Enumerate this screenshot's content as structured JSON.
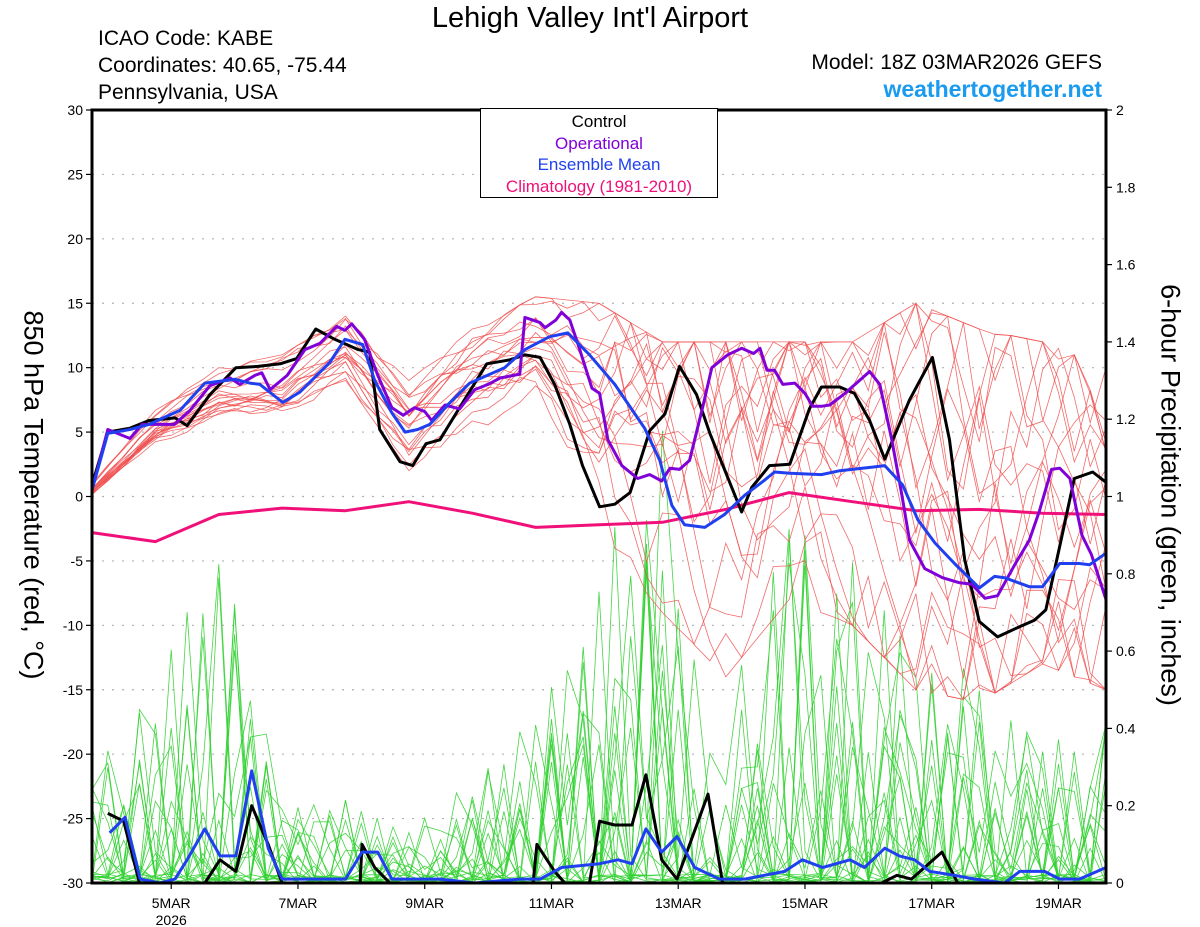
{
  "header": {
    "title": "Lehigh Valley Int'l Airport",
    "icao": "ICAO Code: KABE",
    "coordinates": "Coordinates: 40.65, -75.44",
    "region": "Pennsylvania, USA",
    "model": "Model: 18Z 03MAR2026 GEFS",
    "site": "weathertogether.net"
  },
  "legend": {
    "items": [
      {
        "label": "Control",
        "color": "#000000"
      },
      {
        "label": "Operational",
        "color": "#8000d8"
      },
      {
        "label": "Ensemble Mean",
        "color": "#2040f0"
      },
      {
        "label": "Climatology (1981-2010)",
        "color": "#f0107a"
      }
    ]
  },
  "chart_data": {
    "type": "line",
    "title": "Lehigh Valley Int'l Airport",
    "x_unit": "days since 18Z 03MAR2026",
    "xlim": [
      0,
      16
    ],
    "xticks": [
      {
        "day": 1.25,
        "label": "5MAR",
        "sublabel": "2026"
      },
      {
        "day": 3.25,
        "label": "7MAR",
        "sublabel": ""
      },
      {
        "day": 5.25,
        "label": "9MAR",
        "sublabel": ""
      },
      {
        "day": 7.25,
        "label": "11MAR",
        "sublabel": ""
      },
      {
        "day": 9.25,
        "label": "13MAR",
        "sublabel": ""
      },
      {
        "day": 11.25,
        "label": "15MAR",
        "sublabel": ""
      },
      {
        "day": 13.25,
        "label": "17MAR",
        "sublabel": ""
      },
      {
        "day": 15.25,
        "label": "19MAR",
        "sublabel": ""
      }
    ],
    "ylabel_left": "850 hPa Temperature (red, °C)",
    "ylabel_right": "6-hour Precipitation (green, inches)",
    "ylim_left": [
      -30,
      30
    ],
    "yticks_left": [
      30,
      25,
      20,
      15,
      10,
      5,
      0,
      -5,
      -10,
      -15,
      -20,
      -25,
      -30
    ],
    "ylim_right": [
      0,
      2
    ],
    "yticks_right": [
      "2",
      "1.8",
      "1.6",
      "1.4",
      "1.2",
      "1",
      "0.8",
      "0.6",
      "0.4",
      "0.2",
      "0"
    ],
    "grid": "dotted horizontal",
    "legend_position": "top-center",
    "colors": {
      "members_temp": "#f05050",
      "members_precip": "#30d030",
      "control": "#000000",
      "operational": "#8000d8",
      "mean": "#2040f0",
      "climatology": "#f0107a"
    },
    "temperature": {
      "control": [
        [
          0,
          0.9
        ],
        [
          0.25,
          5.0
        ],
        [
          0.6,
          5.3
        ],
        [
          0.9,
          5.9
        ],
        [
          1.31,
          6.1
        ],
        [
          1.5,
          5.5
        ],
        [
          1.86,
          7.9
        ],
        [
          2.27,
          10.0
        ],
        [
          2.62,
          10.1
        ],
        [
          2.97,
          10.3
        ],
        [
          3.23,
          10.7
        ],
        [
          3.53,
          13.0
        ],
        [
          3.83,
          12.2
        ],
        [
          4.2,
          11.4
        ],
        [
          4.38,
          11.2
        ],
        [
          4.54,
          5.2
        ],
        [
          4.86,
          2.7
        ],
        [
          5.06,
          2.4
        ],
        [
          5.27,
          4.1
        ],
        [
          5.49,
          4.4
        ],
        [
          5.8,
          6.9
        ],
        [
          6.23,
          10.3
        ],
        [
          6.59,
          10.6
        ],
        [
          6.83,
          11.0
        ],
        [
          7.07,
          10.8
        ],
        [
          7.3,
          8.7
        ],
        [
          7.54,
          5.6
        ],
        [
          7.74,
          2.4
        ],
        [
          8.01,
          -0.8
        ],
        [
          8.25,
          -0.6
        ],
        [
          8.49,
          0.3
        ],
        [
          8.8,
          5.1
        ],
        [
          9.04,
          6.4
        ],
        [
          9.27,
          10.1
        ],
        [
          9.54,
          7.9
        ],
        [
          9.75,
          4.9
        ],
        [
          9.98,
          2.1
        ],
        [
          10.25,
          -1.2
        ],
        [
          10.41,
          0.7
        ],
        [
          10.69,
          2.4
        ],
        [
          11.01,
          2.5
        ],
        [
          11.32,
          6.8
        ],
        [
          11.51,
          8.5
        ],
        [
          11.8,
          8.5
        ],
        [
          12.03,
          8.0
        ],
        [
          12.27,
          5.9
        ],
        [
          12.51,
          2.9
        ],
        [
          12.9,
          7.5
        ],
        [
          13.26,
          10.8
        ],
        [
          13.53,
          4.4
        ],
        [
          13.77,
          -4.9
        ],
        [
          14.0,
          -9.7
        ],
        [
          14.29,
          -10.9
        ],
        [
          14.64,
          -10.1
        ],
        [
          14.87,
          -9.6
        ],
        [
          15.05,
          -8.8
        ],
        [
          15.3,
          -3.2
        ],
        [
          15.5,
          1.4
        ],
        [
          15.79,
          1.9
        ],
        [
          16.0,
          1.1
        ]
      ],
      "operational": [
        [
          0,
          0.5
        ],
        [
          0.25,
          5.2
        ],
        [
          0.6,
          4.5
        ],
        [
          0.79,
          5.6
        ],
        [
          1.0,
          5.6
        ],
        [
          1.3,
          5.6
        ],
        [
          1.55,
          6.7
        ],
        [
          1.86,
          8.6
        ],
        [
          2.18,
          9.2
        ],
        [
          2.33,
          8.7
        ],
        [
          2.57,
          9.4
        ],
        [
          2.68,
          9.6
        ],
        [
          2.81,
          8.3
        ],
        [
          3.08,
          9.4
        ],
        [
          3.36,
          11.4
        ],
        [
          3.6,
          11.9
        ],
        [
          3.86,
          13.2
        ],
        [
          3.99,
          12.9
        ],
        [
          4.1,
          13.4
        ],
        [
          4.3,
          12.2
        ],
        [
          4.51,
          9.4
        ],
        [
          4.73,
          6.9
        ],
        [
          4.91,
          6.3
        ],
        [
          5.09,
          6.9
        ],
        [
          5.25,
          6.6
        ],
        [
          5.36,
          5.9
        ],
        [
          5.57,
          7.1
        ],
        [
          5.8,
          6.8
        ],
        [
          6.04,
          8.3
        ],
        [
          6.25,
          8.7
        ],
        [
          6.44,
          9.2
        ],
        [
          6.75,
          9.5
        ],
        [
          6.83,
          13.9
        ],
        [
          7.07,
          13.5
        ],
        [
          7.15,
          13.1
        ],
        [
          7.32,
          13.7
        ],
        [
          7.41,
          14.3
        ],
        [
          7.54,
          13.7
        ],
        [
          7.67,
          11.8
        ],
        [
          7.89,
          8.4
        ],
        [
          8.01,
          8.0
        ],
        [
          8.14,
          4.4
        ],
        [
          8.36,
          2.4
        ],
        [
          8.61,
          1.4
        ],
        [
          8.8,
          1.7
        ],
        [
          8.99,
          1.2
        ],
        [
          9.12,
          2.2
        ],
        [
          9.27,
          2.1
        ],
        [
          9.43,
          2.8
        ],
        [
          9.64,
          7.0
        ],
        [
          9.78,
          10.0
        ],
        [
          10.03,
          11.0
        ],
        [
          10.25,
          11.5
        ],
        [
          10.44,
          11.1
        ],
        [
          10.54,
          11.5
        ],
        [
          10.65,
          9.8
        ],
        [
          10.77,
          9.8
        ],
        [
          10.9,
          8.7
        ],
        [
          11.09,
          8.8
        ],
        [
          11.25,
          8.0
        ],
        [
          11.37,
          7.0
        ],
        [
          11.51,
          7.0
        ],
        [
          11.64,
          7.1
        ],
        [
          11.88,
          8.0
        ],
        [
          12.27,
          9.7
        ],
        [
          12.43,
          8.7
        ],
        [
          12.62,
          4.4
        ],
        [
          12.78,
          0.1
        ],
        [
          12.9,
          -3.4
        ],
        [
          13.14,
          -5.6
        ],
        [
          13.42,
          -6.3
        ],
        [
          13.69,
          -6.7
        ],
        [
          13.88,
          -6.8
        ],
        [
          14.09,
          -7.9
        ],
        [
          14.29,
          -7.7
        ],
        [
          14.56,
          -5.3
        ],
        [
          14.79,
          -3.4
        ],
        [
          14.95,
          -1.1
        ],
        [
          15.14,
          2.1
        ],
        [
          15.27,
          2.2
        ],
        [
          15.43,
          1.4
        ],
        [
          15.62,
          -3.0
        ],
        [
          15.77,
          -4.5
        ],
        [
          16.0,
          -8.0
        ]
      ],
      "mean": [
        [
          0,
          0.5
        ],
        [
          0.25,
          4.9
        ],
        [
          0.6,
          5.2
        ],
        [
          0.9,
          5.6
        ],
        [
          1.39,
          6.7
        ],
        [
          1.78,
          8.8
        ],
        [
          2.26,
          9.1
        ],
        [
          2.49,
          8.8
        ],
        [
          2.65,
          8.7
        ],
        [
          3.01,
          7.3
        ],
        [
          3.28,
          8.1
        ],
        [
          3.75,
          10.4
        ],
        [
          3.99,
          12.2
        ],
        [
          4.27,
          11.8
        ],
        [
          4.46,
          9.0
        ],
        [
          4.73,
          6.5
        ],
        [
          4.94,
          5.0
        ],
        [
          5.14,
          5.2
        ],
        [
          5.33,
          5.6
        ],
        [
          5.65,
          7.3
        ],
        [
          5.96,
          8.8
        ],
        [
          6.51,
          10.0
        ],
        [
          6.83,
          11.4
        ],
        [
          7.22,
          12.4
        ],
        [
          7.51,
          12.7
        ],
        [
          7.85,
          11.0
        ],
        [
          8.25,
          8.7
        ],
        [
          8.72,
          5.3
        ],
        [
          8.96,
          2.8
        ],
        [
          9.15,
          -0.7
        ],
        [
          9.35,
          -2.2
        ],
        [
          9.67,
          -2.4
        ],
        [
          9.98,
          -1.4
        ],
        [
          10.3,
          0.1
        ],
        [
          10.62,
          1.3
        ],
        [
          10.77,
          1.9
        ],
        [
          11.01,
          1.8
        ],
        [
          11.51,
          1.7
        ],
        [
          11.8,
          2.0
        ],
        [
          12.35,
          2.3
        ],
        [
          12.51,
          2.4
        ],
        [
          12.79,
          0.9
        ],
        [
          13.03,
          -1.8
        ],
        [
          13.3,
          -3.6
        ],
        [
          13.61,
          -5.2
        ],
        [
          14.0,
          -7.1
        ],
        [
          14.24,
          -6.2
        ],
        [
          14.4,
          -6.3
        ],
        [
          14.79,
          -7.0
        ],
        [
          15.0,
          -7.0
        ],
        [
          15.27,
          -5.2
        ],
        [
          15.58,
          -5.2
        ],
        [
          15.74,
          -5.3
        ],
        [
          16.0,
          -4.4
        ]
      ],
      "climatology": [
        [
          0,
          -2.8
        ],
        [
          1.0,
          -3.5
        ],
        [
          2.0,
          -1.4
        ],
        [
          3.0,
          -0.9
        ],
        [
          4.0,
          -1.1
        ],
        [
          5.0,
          -0.4
        ],
        [
          6.0,
          -1.3
        ],
        [
          7.0,
          -2.4
        ],
        [
          8.0,
          -2.2
        ],
        [
          9.0,
          -2.0
        ],
        [
          10.0,
          -1.0
        ],
        [
          11.0,
          0.3
        ],
        [
          12.0,
          -0.4
        ],
        [
          13.0,
          -1.1
        ],
        [
          14.0,
          -1.0
        ],
        [
          15.0,
          -1.3
        ],
        [
          16.0,
          -1.4
        ]
      ],
      "members": {
        "count": 20,
        "envelope_by_day": [
          [
            0,
            1
          ],
          [
            4,
            7
          ],
          [
            6,
            10
          ],
          [
            6,
            11
          ],
          [
            9,
            14
          ],
          [
            2,
            9
          ],
          [
            5,
            13
          ],
          [
            7,
            15.5
          ],
          [
            -3,
            15
          ],
          [
            -9,
            12
          ],
          [
            -14,
            12
          ],
          [
            -8,
            12
          ],
          [
            -10,
            12
          ],
          [
            -15,
            15
          ],
          [
            -16,
            13
          ],
          [
            -13,
            12
          ],
          [
            -15,
            10
          ]
        ]
      }
    },
    "precipitation": {
      "control": [
        [
          0.25,
          0.18
        ],
        [
          0.5,
          0.16
        ],
        [
          0.75,
          0
        ],
        [
          1.78,
          0
        ],
        [
          2.02,
          0.06
        ],
        [
          2.27,
          0.03
        ],
        [
          2.52,
          0.2
        ],
        [
          2.78,
          0.1
        ],
        [
          3.0,
          0
        ],
        [
          4.23,
          0
        ],
        [
          4.26,
          0.1
        ],
        [
          4.46,
          0.04
        ],
        [
          4.7,
          0
        ],
        [
          6.96,
          0
        ],
        [
          7.02,
          0.1
        ],
        [
          7.3,
          0.03
        ],
        [
          7.46,
          0
        ],
        [
          7.85,
          0
        ],
        [
          8.01,
          0.16
        ],
        [
          8.25,
          0.15
        ],
        [
          8.52,
          0.15
        ],
        [
          8.74,
          0.28
        ],
        [
          8.99,
          0.06
        ],
        [
          9.23,
          0.01
        ],
        [
          9.72,
          0.23
        ],
        [
          9.95,
          0
        ],
        [
          12.46,
          0
        ],
        [
          12.7,
          0.02
        ],
        [
          12.93,
          0.01
        ],
        [
          13.41,
          0.08
        ],
        [
          13.66,
          0
        ],
        [
          16,
          0
        ]
      ],
      "mean": [
        [
          0.28,
          0.13
        ],
        [
          0.52,
          0.17
        ],
        [
          0.76,
          0.01
        ],
        [
          1.07,
          0
        ],
        [
          1.31,
          0.01
        ],
        [
          1.5,
          0.06
        ],
        [
          1.78,
          0.14
        ],
        [
          2.02,
          0.07
        ],
        [
          2.27,
          0.07
        ],
        [
          2.52,
          0.29
        ],
        [
          2.78,
          0.09
        ],
        [
          3.0,
          0.01
        ],
        [
          4.0,
          0.01
        ],
        [
          4.26,
          0.08
        ],
        [
          4.51,
          0.08
        ],
        [
          4.73,
          0.01
        ],
        [
          5.49,
          0.01
        ],
        [
          6.04,
          0
        ],
        [
          6.75,
          0.01
        ],
        [
          7.07,
          0.01
        ],
        [
          7.41,
          0.04
        ],
        [
          8.01,
          0.05
        ],
        [
          8.3,
          0.06
        ],
        [
          8.52,
          0.05
        ],
        [
          8.74,
          0.14
        ],
        [
          8.99,
          0.08
        ],
        [
          9.23,
          0.12
        ],
        [
          9.51,
          0.04
        ],
        [
          9.9,
          0.01
        ],
        [
          10.3,
          0.01
        ],
        [
          10.93,
          0.03
        ],
        [
          11.21,
          0.06
        ],
        [
          11.53,
          0.04
        ],
        [
          11.96,
          0.06
        ],
        [
          12.19,
          0.04
        ],
        [
          12.51,
          0.09
        ],
        [
          12.74,
          0.07
        ],
        [
          12.98,
          0.06
        ],
        [
          13.22,
          0.03
        ],
        [
          13.61,
          0.02
        ],
        [
          13.93,
          0.01
        ],
        [
          14.4,
          0
        ],
        [
          14.64,
          0.03
        ],
        [
          15.03,
          0.03
        ],
        [
          15.27,
          0.01
        ],
        [
          15.58,
          0.01
        ],
        [
          16,
          0.04
        ]
      ],
      "members": {
        "count": 20,
        "max_by_day": [
          0.26,
          0.6,
          0.95,
          0.2,
          0.22,
          0.15,
          0.28,
          0.45,
          0.82,
          1.24,
          0.45,
          1.08,
          0.85,
          0.62,
          0.55,
          0.35,
          0.45
        ]
      }
    }
  }
}
